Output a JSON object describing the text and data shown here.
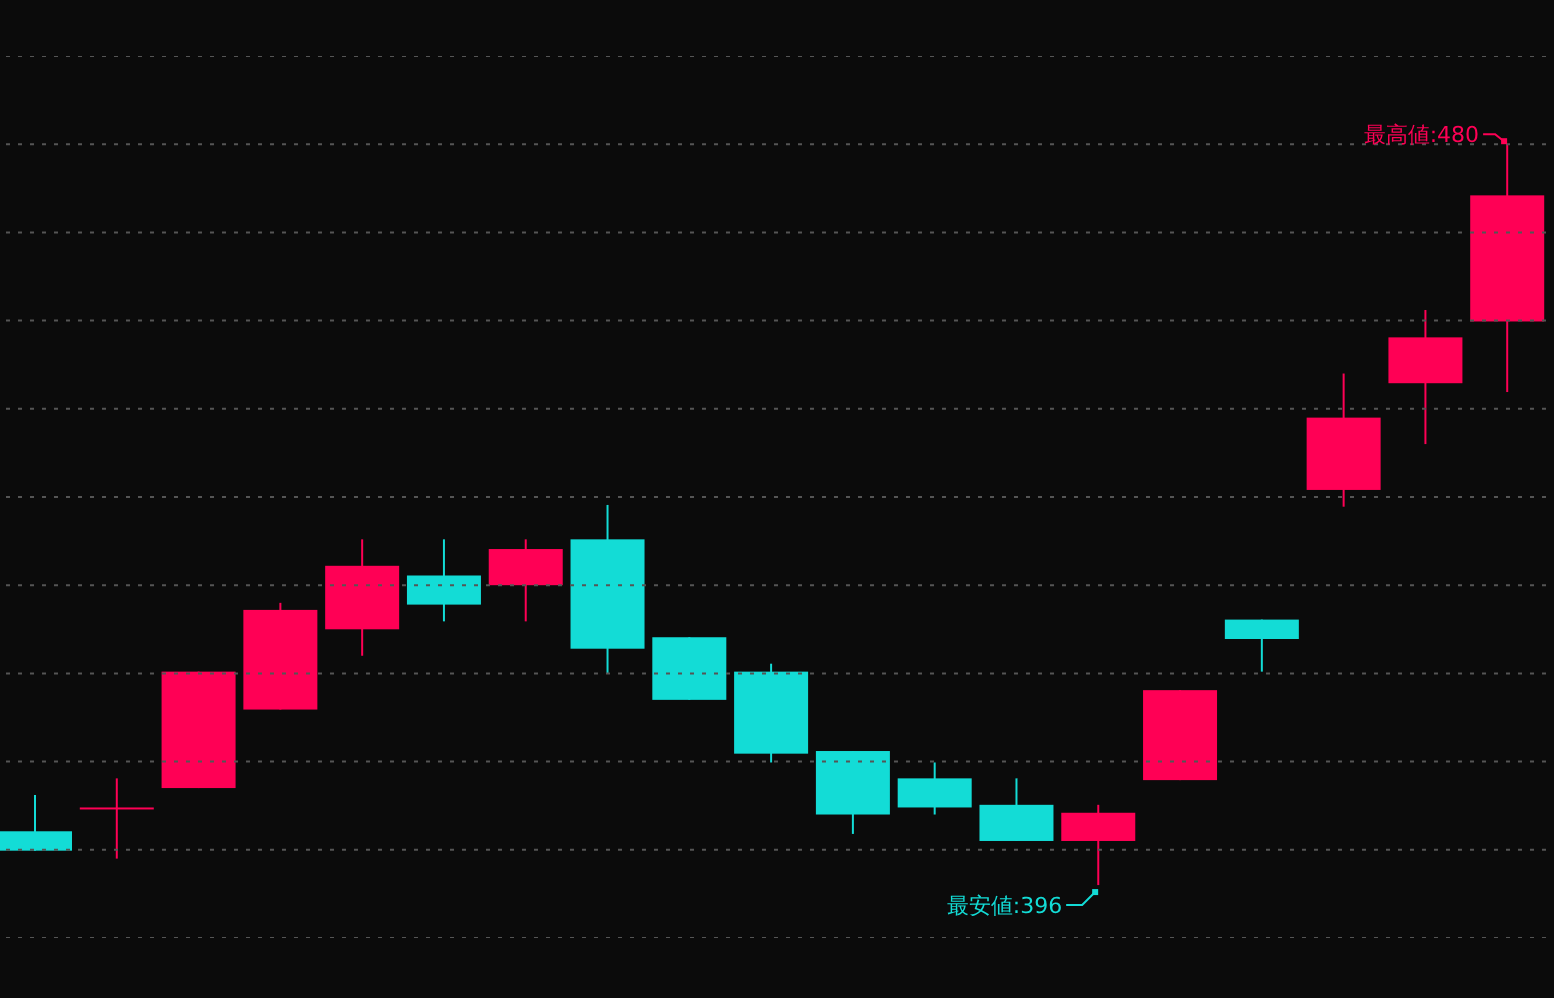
{
  "chart_data": {
    "type": "candlestick",
    "categories": [
      null,
      null,
      null,
      null,
      null,
      null,
      null,
      null,
      null,
      null,
      null,
      null,
      null,
      null,
      null,
      null,
      null,
      null,
      null
    ],
    "ohlc": [
      [
        402.1,
        406.2,
        399.9,
        399.9
      ],
      [
        404.8,
        408.1,
        399.0,
        404.8
      ],
      [
        407.0,
        420.2,
        407.0,
        420.2
      ],
      [
        415.9,
        428.0,
        415.9,
        427.2
      ],
      [
        425.0,
        435.2,
        422.0,
        432.2
      ],
      [
        431.1,
        435.2,
        425.9,
        427.8
      ],
      [
        430.0,
        435.2,
        425.9,
        434.1
      ],
      [
        435.2,
        439.1,
        420.0,
        422.8
      ],
      [
        424.1,
        424.1,
        417.0,
        417.0
      ],
      [
        420.2,
        421.1,
        409.9,
        410.9
      ],
      [
        411.2,
        411.2,
        401.8,
        404.0
      ],
      [
        408.1,
        409.9,
        404.0,
        404.8
      ],
      [
        405.1,
        408.1,
        401.0,
        401.0
      ],
      [
        401.0,
        405.1,
        396,
        404.2
      ],
      [
        407.9,
        418.1,
        407.9,
        418.1
      ],
      [
        426.1,
        426.1,
        420.2,
        423.9
      ],
      [
        440.8,
        454.0,
        438.9,
        449.0
      ],
      [
        452.9,
        461.2,
        446.0,
        458.1
      ],
      [
        459.9,
        480,
        451.9,
        474.2
      ]
    ],
    "colors": [
      "#13dcd6",
      "#ff0055",
      "#ff0055",
      "#ff0055",
      "#ff0055",
      "#13dcd6",
      "#ff0055",
      "#13dcd6",
      "#13dcd6",
      "#13dcd6",
      "#13dcd6",
      "#13dcd6",
      "#13dcd6",
      "#ff0055",
      "#ff0055",
      "#13dcd6",
      "#ff0055",
      "#ff0055",
      "#ff0055"
    ],
    "ylim": [
      390,
      490
    ],
    "yticks": [
      {
        "value": 390,
        "label": null
      },
      {
        "value": 400,
        "label": null
      },
      {
        "value": 410,
        "label": null
      },
      {
        "value": 420,
        "label": null
      },
      {
        "value": 430,
        "label": null
      },
      {
        "value": 440,
        "label": null
      },
      {
        "value": 450,
        "label": null
      },
      {
        "value": 460,
        "label": null
      },
      {
        "value": 470,
        "label": null
      },
      {
        "value": 480,
        "label": null
      },
      {
        "value": 490,
        "label": null
      }
    ],
    "grid": "y",
    "annotations": [
      "最高値:480",
      "最安値:396"
    ]
  }
}
